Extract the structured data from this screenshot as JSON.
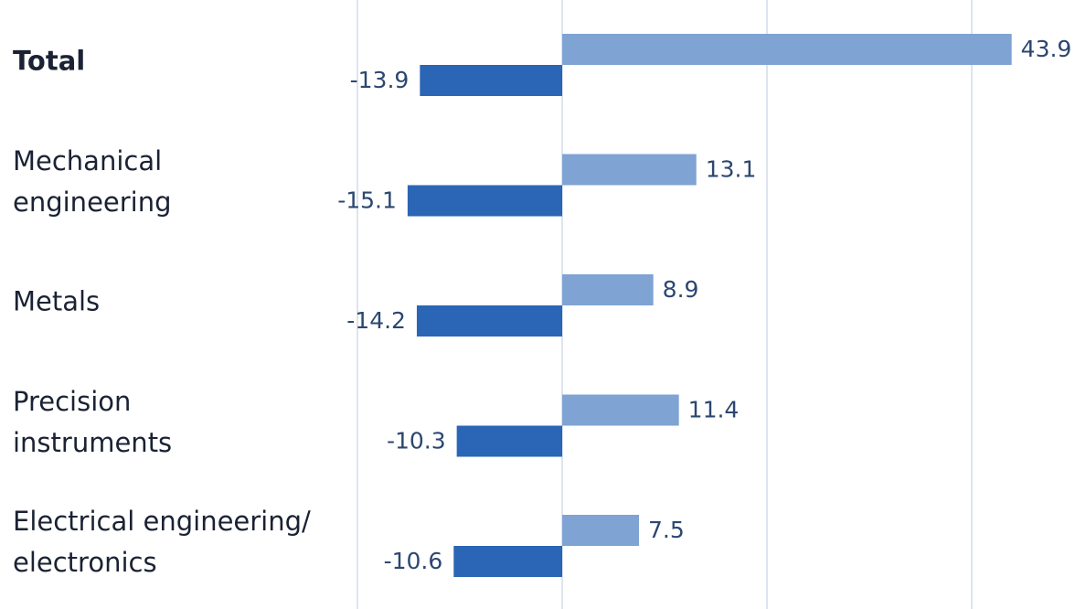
{
  "chart_data": {
    "type": "bar",
    "orientation": "horizontal",
    "categories": [
      "Total",
      "Mechanical\nengineering",
      "Metals",
      "Precision\ninstruments",
      "Electrical engineering/\nelectronics"
    ],
    "series": [
      {
        "color": "#7fa3d3",
        "values": [
          43.9,
          13.1,
          8.9,
          11.4,
          7.5
        ]
      },
      {
        "color": "#2b65b5",
        "values": [
          -13.9,
          -15.1,
          -14.2,
          -10.3,
          -10.6
        ]
      }
    ],
    "xlim": [
      -20,
      50
    ],
    "xticks": [
      -20,
      0,
      20,
      40
    ],
    "grid": true
  }
}
